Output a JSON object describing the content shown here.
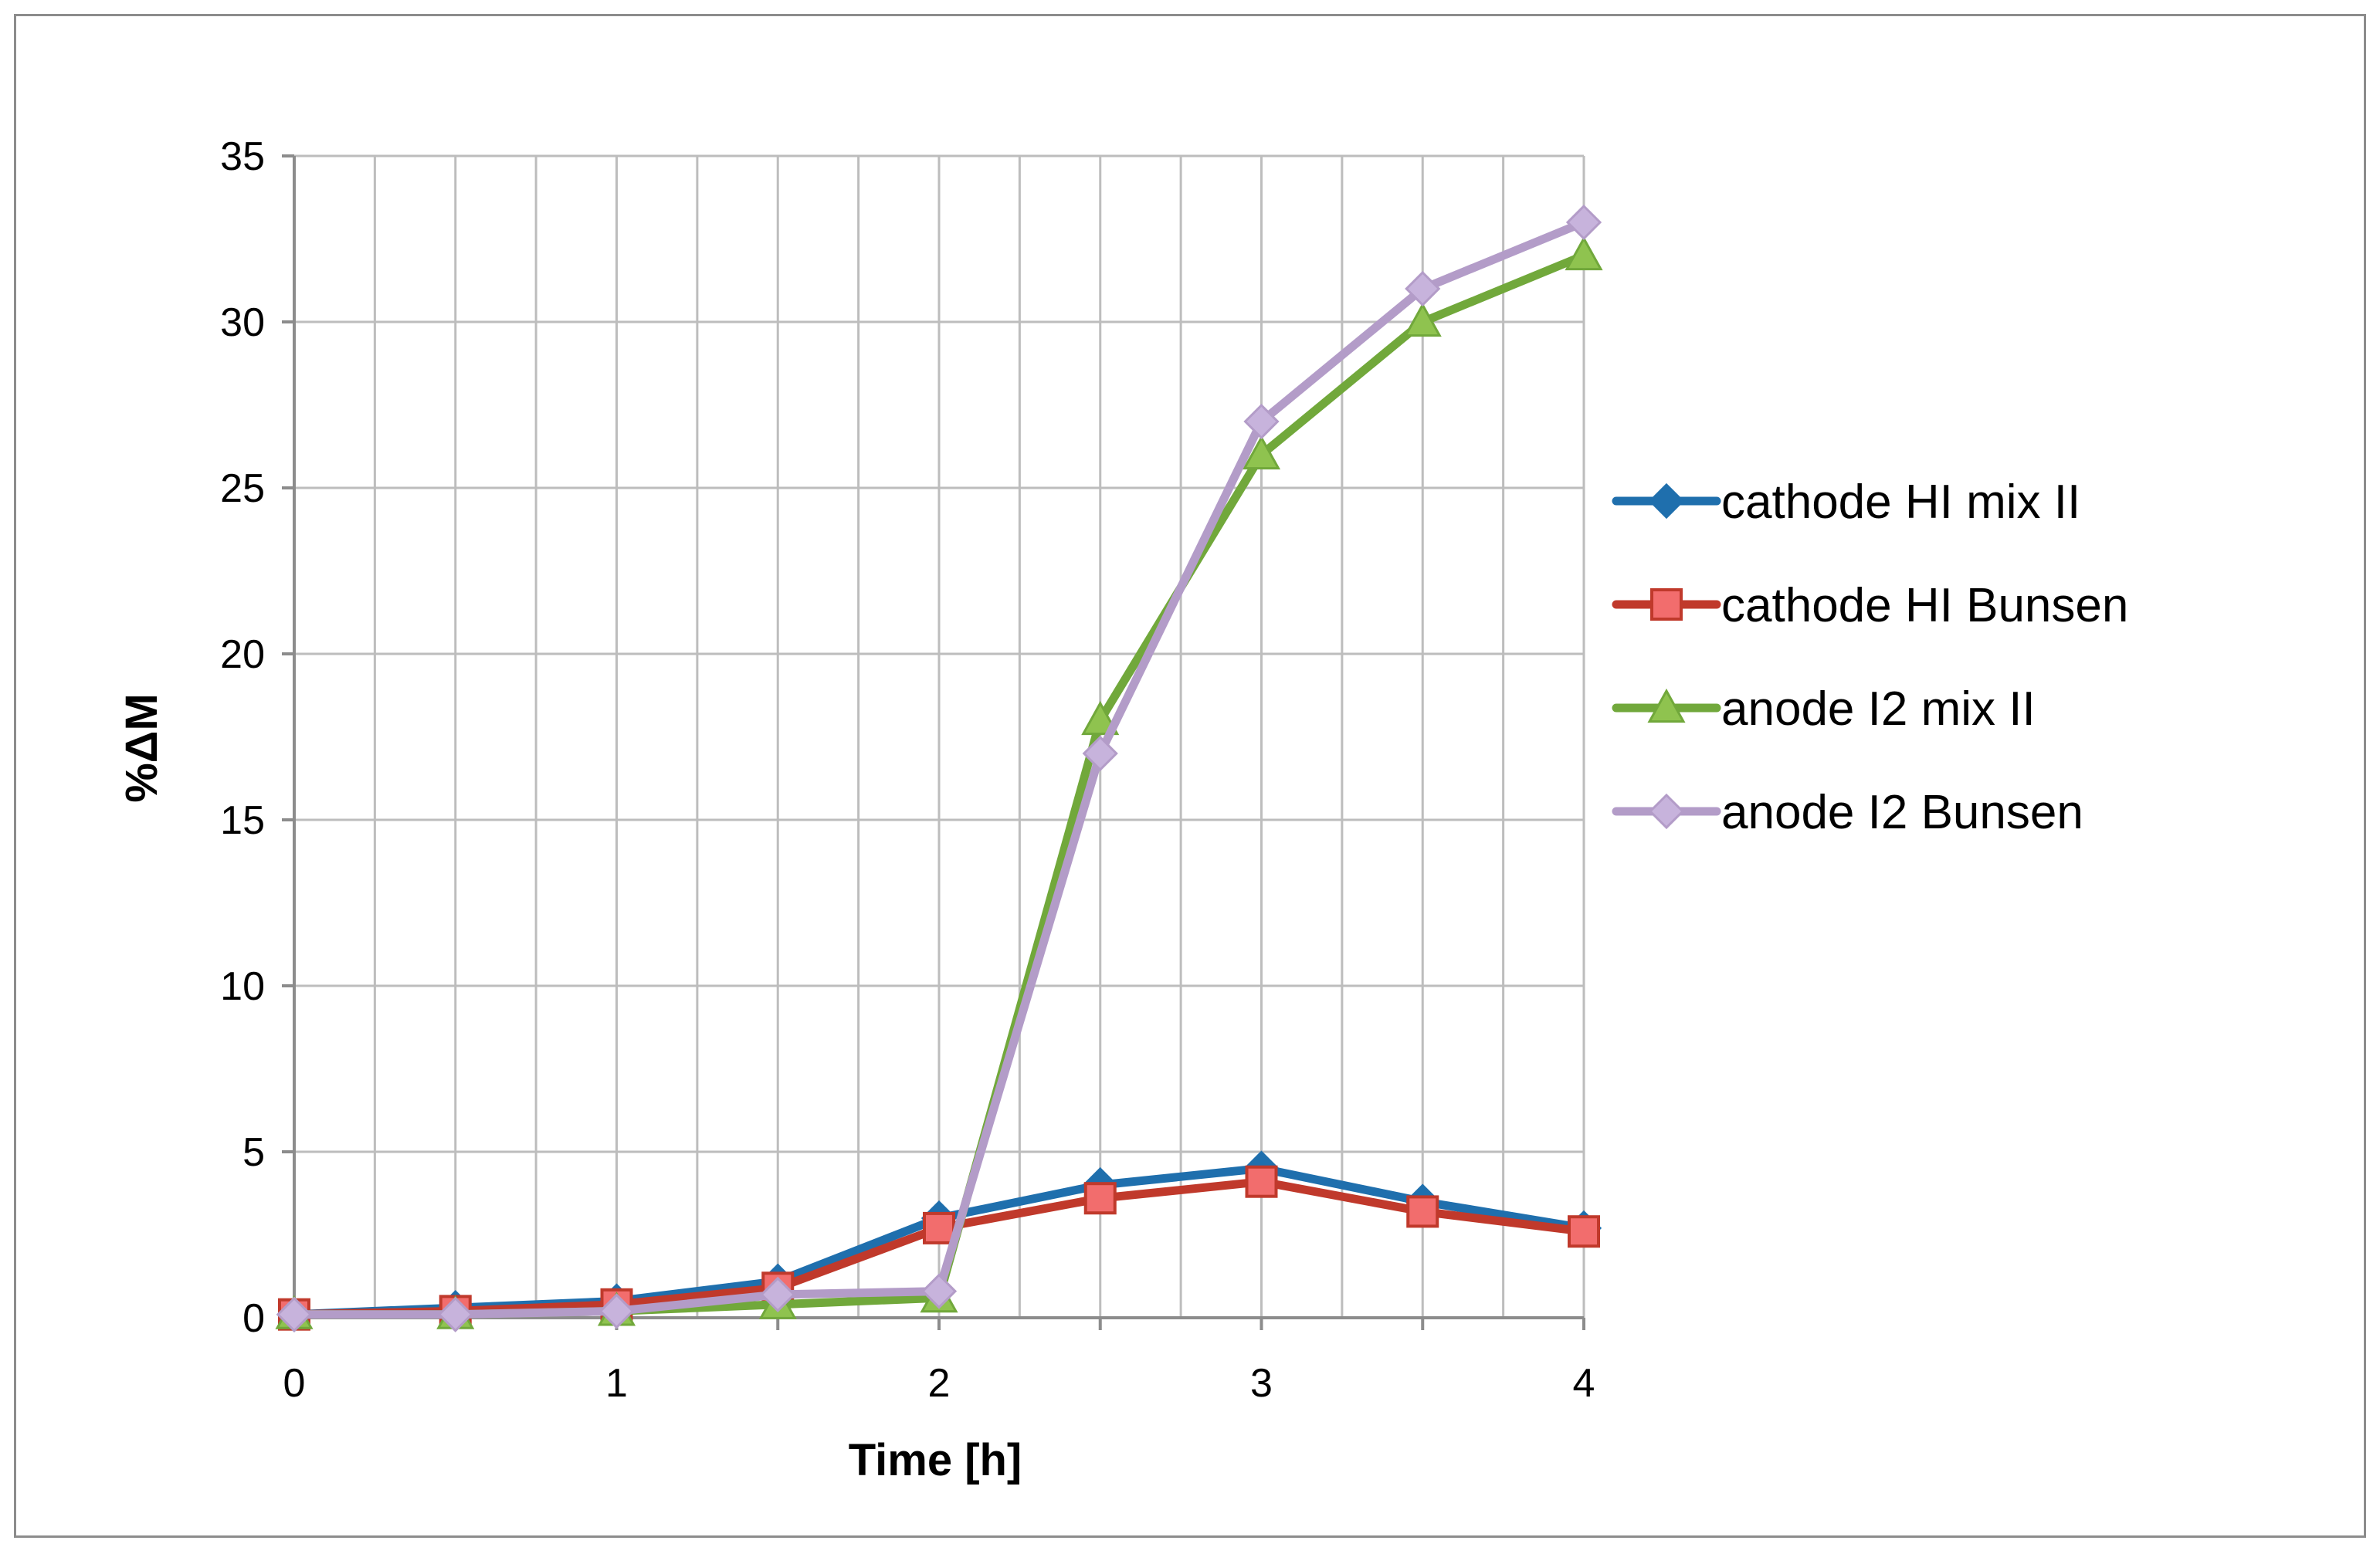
{
  "chart_data": {
    "type": "line",
    "title": "",
    "xlabel": "Time [h]",
    "ylabel": "%ΔM",
    "xlim": [
      0,
      4
    ],
    "ylim": [
      0,
      35
    ],
    "x_ticks": [
      0,
      1,
      2,
      3,
      4
    ],
    "x_tick_labels": [
      "0",
      "1",
      "2",
      "3",
      "4"
    ],
    "y_ticks": [
      0,
      5,
      10,
      15,
      20,
      25,
      30,
      35
    ],
    "y_tick_labels": [
      "0",
      "5",
      "10",
      "15",
      "20",
      "25",
      "30",
      "35"
    ],
    "grid": true,
    "legend_position": "right",
    "x": [
      0,
      0.5,
      1,
      1.5,
      2,
      2.5,
      3,
      3.5,
      4
    ],
    "series": [
      {
        "name": "cathode HI mix II",
        "color": "#1f6fad",
        "marker": "diamond",
        "values": [
          0.1,
          0.3,
          0.5,
          1.1,
          3.0,
          4.0,
          4.5,
          3.5,
          2.7
        ]
      },
      {
        "name": "cathode HI Bunsen",
        "color": "#c0392b",
        "marker_fill": "#f26d6d",
        "marker": "square",
        "values": [
          0.1,
          0.2,
          0.4,
          0.9,
          2.7,
          3.6,
          4.1,
          3.2,
          2.6
        ]
      },
      {
        "name": "anode I2 mix II",
        "color": "#71a83b",
        "marker_fill": "#8fc34f",
        "marker": "triangle",
        "values": [
          0.1,
          0.1,
          0.2,
          0.4,
          0.6,
          18.0,
          26.0,
          30.0,
          32.0
        ]
      },
      {
        "name": "anode I2 Bunsen",
        "color": "#b39cc8",
        "marker_fill": "#c7b3dc",
        "marker": "diamond",
        "values": [
          0.1,
          0.1,
          0.2,
          0.7,
          0.8,
          17.0,
          27.0,
          31.0,
          33.0
        ]
      }
    ]
  }
}
